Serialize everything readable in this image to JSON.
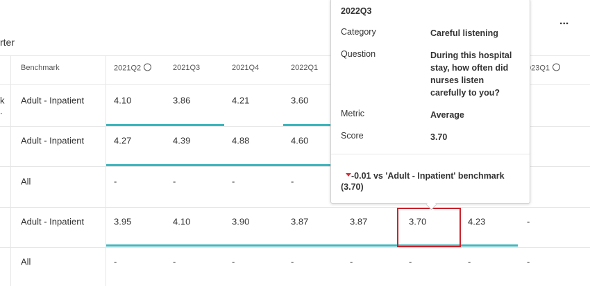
{
  "header": {
    "title_fragment": "rter",
    "menu": "..."
  },
  "table": {
    "columns": [
      "Benchmark",
      "2021Q2",
      "2021Q3",
      "2021Q4",
      "2022Q1",
      "023Q1"
    ],
    "column_slots": [
      0,
      1,
      2,
      3,
      4,
      8
    ],
    "left_fragments": [
      "k",
      "."
    ],
    "rows": [
      {
        "benchmark": "Adult - Inpatient",
        "cells": [
          "4.10",
          "3.86",
          "4.21",
          "3.60"
        ]
      },
      {
        "benchmark": "Adult - Inpatient",
        "cells": [
          "4.27",
          "4.39",
          "4.88",
          "4.60"
        ]
      },
      {
        "benchmark": "All",
        "cells": [
          "-",
          "-",
          "-",
          "-"
        ]
      },
      {
        "benchmark": "Adult - Inpatient",
        "cells": [
          "3.95",
          "4.10",
          "3.90",
          "3.87",
          "3.87",
          "3.70",
          "4.23",
          "-"
        ]
      },
      {
        "benchmark": "All",
        "cells": [
          "-",
          "-",
          "-",
          "-",
          "-",
          "-",
          "-",
          "-"
        ]
      }
    ]
  },
  "tooltip": {
    "title": "2022Q3",
    "items": [
      {
        "label": "Category",
        "value": "Careful listening"
      },
      {
        "label": "Question",
        "value": "During this hospital stay, how often did nurses listen carefully to you?"
      },
      {
        "label": "Metric",
        "value": "Average"
      },
      {
        "label": "Score",
        "value": "3.70"
      }
    ],
    "footer": "-0.01 vs 'Adult - Inpatient' benchmark (3.70)"
  }
}
